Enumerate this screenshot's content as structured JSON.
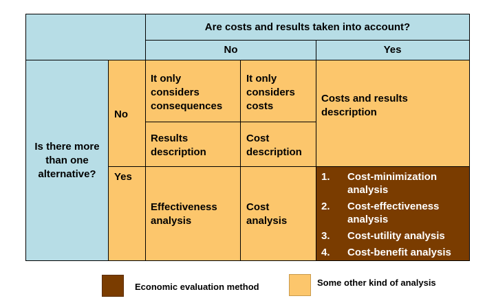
{
  "header": {
    "question": "Are costs and results taken into account?",
    "no_label": "No",
    "yes_label": "Yes"
  },
  "rows": {
    "question": "Is there more than one alternative?",
    "no_label": "No",
    "yes_label": "Yes"
  },
  "cells": {
    "consequences_only": "It only considers consequences",
    "costs_only": "It only considers costs",
    "costs_results_description": "Costs and results description",
    "results_description": "Results description",
    "cost_description": "Cost description",
    "effectiveness_analysis": "Effectiveness analysis",
    "cost_analysis": "Cost analysis"
  },
  "methods": [
    {
      "number": "1.",
      "label": "Cost-minimization analysis"
    },
    {
      "number": "2.",
      "label": "Cost-effectiveness analysis"
    },
    {
      "number": "3.",
      "label": "Cost-utility analysis"
    },
    {
      "number": "4.",
      "label": "Cost-benefit analysis"
    }
  ],
  "legend": {
    "economic_label": "Economic evaluation method",
    "other_label": "Some other kind of analysis"
  },
  "colors": {
    "header_blue": "#b7dde6",
    "analysis_orange": "#fcc66c",
    "economic_brown": "#7a3c00"
  }
}
